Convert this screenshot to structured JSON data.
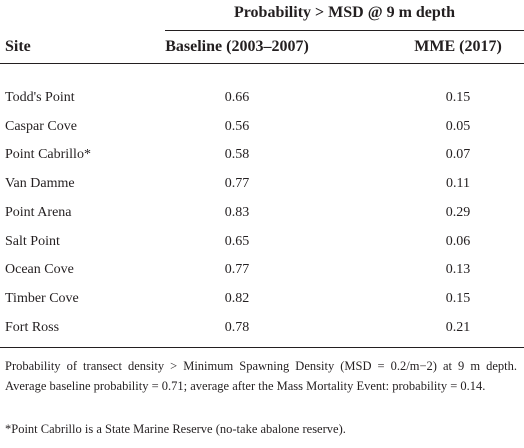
{
  "table": {
    "group_header": "Probability > MSD @ 9 m depth",
    "columns": [
      "Site",
      "Baseline (2003–2007)",
      "MME (2017)"
    ],
    "rows": [
      [
        "Todd's Point",
        0.66,
        0.15
      ],
      [
        "Caspar Cove",
        0.56,
        0.05
      ],
      [
        "Point Cabrillo*",
        0.58,
        0.07
      ],
      [
        "Van Damme",
        0.77,
        0.11
      ],
      [
        "Point Arena",
        0.83,
        0.29
      ],
      [
        "Salt Point",
        0.65,
        0.06
      ],
      [
        "Ocean Cove",
        0.77,
        0.13
      ],
      [
        "Timber Cove",
        0.82,
        0.15
      ],
      [
        "Fort Ross",
        0.78,
        0.21
      ]
    ]
  },
  "footnotes": [
    "Probability of transect density > Minimum Spawning Density (MSD = 0.2/m−2) at 9 m depth. Average baseline probability = 0.71; average after the Mass Mortality Event: probability = 0.14.",
    "*Point Cabrillo is a State Marine Reserve (no-take abalone reserve)."
  ]
}
